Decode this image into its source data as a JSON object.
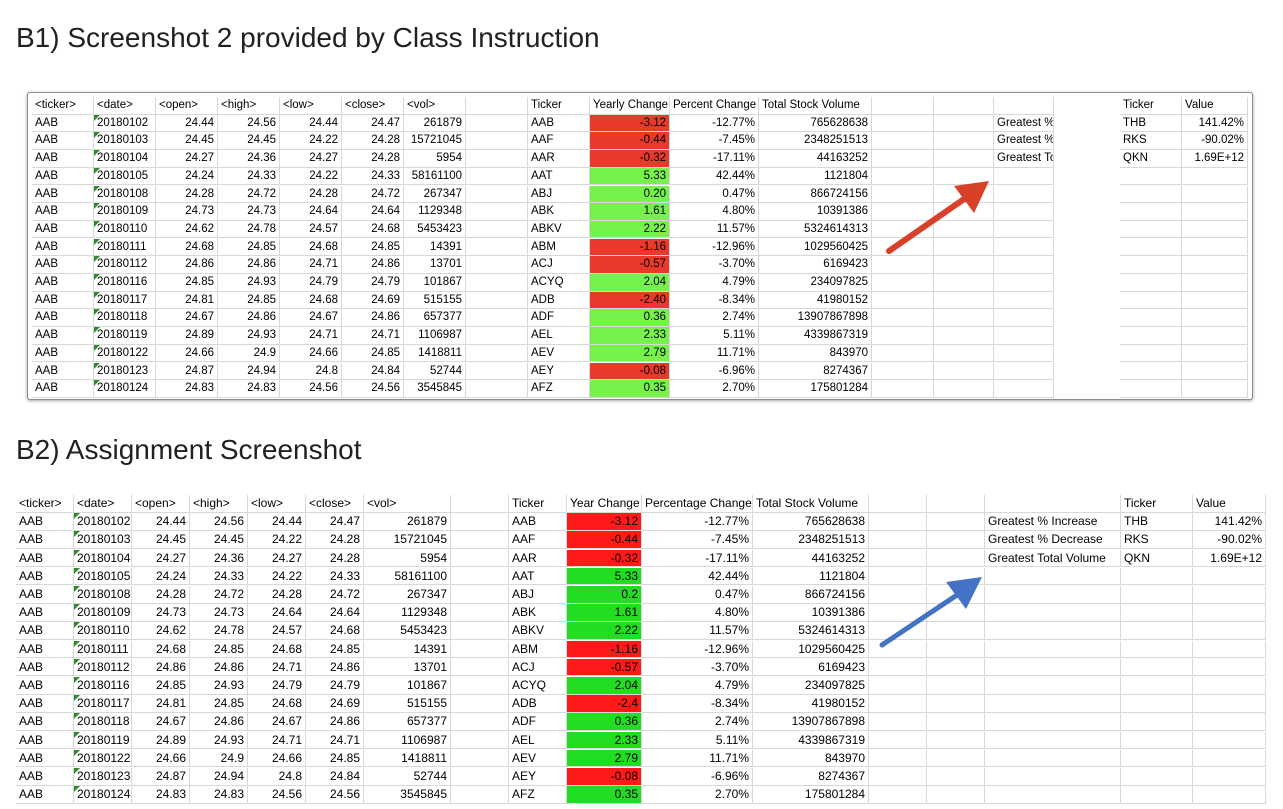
{
  "titles": {
    "b1": "B1) Screenshot 2 provided by Class Instruction",
    "b2": "B2) Assignment Screenshot"
  },
  "colors": {
    "b1_positive": "#77f24d",
    "b1_negative": "#e8392b",
    "b2_positive": "#22dd22",
    "b2_negative": "#ff1a1a",
    "b1_arrow": "#d9402a",
    "b2_arrow": "#4472c4"
  },
  "icons": {
    "b1_arrow": "arrow-up-right-red",
    "b2_arrow": "arrow-up-right-blue"
  },
  "raw_headers": [
    "<ticker>",
    "<date>",
    "<open>",
    "<high>",
    "<low>",
    "<close>",
    "<vol>"
  ],
  "raw_rows": [
    [
      "AAB",
      "20180102",
      "24.44",
      "24.56",
      "24.44",
      "24.47",
      "261879"
    ],
    [
      "AAB",
      "20180103",
      "24.45",
      "24.45",
      "24.22",
      "24.28",
      "15721045"
    ],
    [
      "AAB",
      "20180104",
      "24.27",
      "24.36",
      "24.27",
      "24.28",
      "5954"
    ],
    [
      "AAB",
      "20180105",
      "24.24",
      "24.33",
      "24.22",
      "24.33",
      "58161100"
    ],
    [
      "AAB",
      "20180108",
      "24.28",
      "24.72",
      "24.28",
      "24.72",
      "267347"
    ],
    [
      "AAB",
      "20180109",
      "24.73",
      "24.73",
      "24.64",
      "24.64",
      "1129348"
    ],
    [
      "AAB",
      "20180110",
      "24.62",
      "24.78",
      "24.57",
      "24.68",
      "5453423"
    ],
    [
      "AAB",
      "20180111",
      "24.68",
      "24.85",
      "24.68",
      "24.85",
      "14391"
    ],
    [
      "AAB",
      "20180112",
      "24.86",
      "24.86",
      "24.71",
      "24.86",
      "13701"
    ],
    [
      "AAB",
      "20180116",
      "24.85",
      "24.93",
      "24.79",
      "24.79",
      "101867"
    ],
    [
      "AAB",
      "20180117",
      "24.81",
      "24.85",
      "24.68",
      "24.69",
      "515155"
    ],
    [
      "AAB",
      "20180118",
      "24.67",
      "24.86",
      "24.67",
      "24.86",
      "657377"
    ],
    [
      "AAB",
      "20180119",
      "24.89",
      "24.93",
      "24.71",
      "24.71",
      "1106987"
    ],
    [
      "AAB",
      "20180122",
      "24.66",
      "24.9",
      "24.66",
      "24.85",
      "1418811"
    ],
    [
      "AAB",
      "20180123",
      "24.87",
      "24.94",
      "24.8",
      "24.84",
      "52744"
    ],
    [
      "AAB",
      "20180124",
      "24.83",
      "24.83",
      "24.56",
      "24.56",
      "3545845"
    ]
  ],
  "b1": {
    "summary_headers": [
      "Ticker",
      "Yearly Change",
      "Percent Change",
      "Total Stock Volume"
    ],
    "summary_rows": [
      [
        "AAB",
        "-3.12",
        "-12.77%",
        "765628638"
      ],
      [
        "AAF",
        "-0.44",
        "-7.45%",
        "2348251513"
      ],
      [
        "AAR",
        "-0.32",
        "-17.11%",
        "44163252"
      ],
      [
        "AAT",
        "5.33",
        "42.44%",
        "1121804"
      ],
      [
        "ABJ",
        "0.20",
        "0.47%",
        "866724156"
      ],
      [
        "ABK",
        "1.61",
        "4.80%",
        "10391386"
      ],
      [
        "ABKV",
        "2.22",
        "11.57%",
        "5324614313"
      ],
      [
        "ABM",
        "-1.16",
        "-12.96%",
        "1029560425"
      ],
      [
        "ACJ",
        "-0.57",
        "-3.70%",
        "6169423"
      ],
      [
        "ACYQ",
        "2.04",
        "4.79%",
        "234097825"
      ],
      [
        "ADB",
        "-2.40",
        "-8.34%",
        "41980152"
      ],
      [
        "ADF",
        "0.36",
        "2.74%",
        "13907867898"
      ],
      [
        "AEL",
        "2.33",
        "5.11%",
        "4339867319"
      ],
      [
        "AEV",
        "2.79",
        "11.71%",
        "843970"
      ],
      [
        "AEY",
        "-0.08",
        "-6.96%",
        "8274367"
      ],
      [
        "AFZ",
        "0.35",
        "2.70%",
        "175801284"
      ]
    ],
    "greatest_headers": [
      "Ticker",
      "Value"
    ],
    "greatest_rows": [
      [
        "Greatest % Increase",
        "THB",
        "141.42%"
      ],
      [
        "Greatest % Decrease",
        "RKS",
        "-90.02%"
      ],
      [
        "Greatest Total Volume",
        "QKN",
        "1.69E+12"
      ]
    ]
  },
  "b2": {
    "summary_headers": [
      "Ticker",
      "Year Change",
      "Percentage Change",
      "Total Stock Volume"
    ],
    "summary_rows": [
      [
        "AAB",
        "-3.12",
        "-12.77%",
        "765628638"
      ],
      [
        "AAF",
        "-0.44",
        "-7.45%",
        "2348251513"
      ],
      [
        "AAR",
        "-0.32",
        "-17.11%",
        "44163252"
      ],
      [
        "AAT",
        "5.33",
        "42.44%",
        "1121804"
      ],
      [
        "ABJ",
        "0.2",
        "0.47%",
        "866724156"
      ],
      [
        "ABK",
        "1.61",
        "4.80%",
        "10391386"
      ],
      [
        "ABKV",
        "2.22",
        "11.57%",
        "5324614313"
      ],
      [
        "ABM",
        "-1.16",
        "-12.96%",
        "1029560425"
      ],
      [
        "ACJ",
        "-0.57",
        "-3.70%",
        "6169423"
      ],
      [
        "ACYQ",
        "2.04",
        "4.79%",
        "234097825"
      ],
      [
        "ADB",
        "-2.4",
        "-8.34%",
        "41980152"
      ],
      [
        "ADF",
        "0.36",
        "2.74%",
        "13907867898"
      ],
      [
        "AEL",
        "2.33",
        "5.11%",
        "4339867319"
      ],
      [
        "AEV",
        "2.79",
        "11.71%",
        "843970"
      ],
      [
        "AEY",
        "-0.08",
        "-6.96%",
        "8274367"
      ],
      [
        "AFZ",
        "0.35",
        "2.70%",
        "175801284"
      ]
    ],
    "greatest_headers": [
      "Ticker",
      "Value"
    ],
    "greatest_rows": [
      [
        "Greatest % Increase",
        "THB",
        "141.42%"
      ],
      [
        "Greatest % Decrease",
        "RKS",
        "-90.02%"
      ],
      [
        "Greatest Total Volume",
        "QKN",
        "1.69E+12"
      ]
    ]
  }
}
